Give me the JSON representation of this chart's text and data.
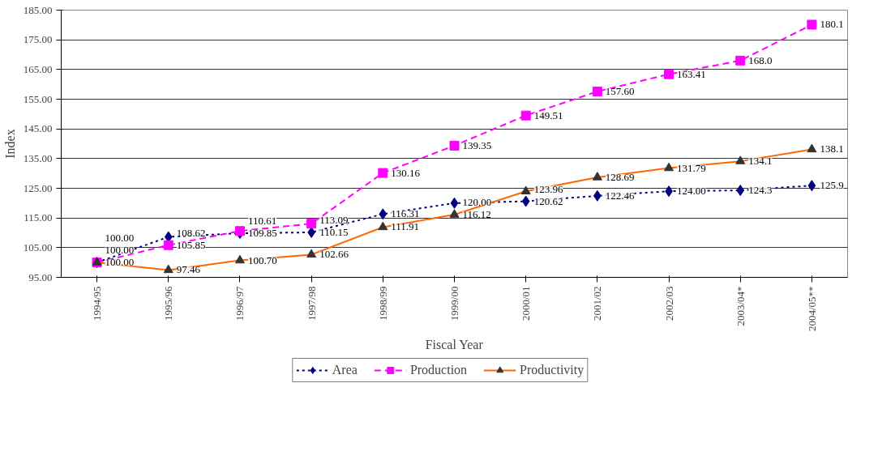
{
  "chart_data": {
    "type": "line",
    "xlabel": "Fiscal Year",
    "ylabel": "Index",
    "categories": [
      "1994/95",
      "1995/96",
      "1996/97",
      "1997/98",
      "1998/99",
      "1999/00",
      "2000/01",
      "2001/02",
      "2002/03",
      "2003/04*",
      "2004/05**"
    ],
    "series": [
      {
        "name": "Area",
        "color": "#000080",
        "marker": "diamond",
        "line_style": "dotted",
        "values": [
          100.0,
          108.62,
          109.85,
          110.15,
          116.31,
          120.0,
          120.62,
          122.46,
          124.0,
          124.3,
          125.9
        ],
        "value_labels": [
          "100.00",
          "108.62",
          "109.85",
          "110.15",
          "116.31",
          "120.00",
          "120.62",
          "122.46",
          "124.00",
          "124.3",
          "125.9"
        ]
      },
      {
        "name": "Production",
        "color": "#ff00ff",
        "marker": "square",
        "line_style": "dashed",
        "values": [
          100.0,
          105.85,
          110.61,
          113.09,
          130.16,
          139.35,
          149.51,
          157.6,
          163.41,
          168.0,
          180.1
        ],
        "value_labels": [
          "100.00",
          "105.85",
          "110.61",
          "113.09",
          "130.16",
          "139.35",
          "149.51",
          "157.60",
          "163.41",
          "168.0",
          "180.1"
        ]
      },
      {
        "name": "Productivity",
        "color": "#ff6600",
        "marker": "triangle",
        "line_style": "solid",
        "values": [
          100.0,
          97.46,
          100.7,
          102.66,
          111.91,
          116.12,
          123.96,
          128.69,
          131.79,
          134.1,
          138.1
        ],
        "value_labels": [
          "100.00",
          "97.46",
          "100.70",
          "102.66",
          "111.91",
          "116.12",
          "123.96",
          "128.69",
          "131.79",
          "134.1",
          "138.1"
        ]
      }
    ],
    "ylim": [
      95,
      185
    ],
    "yticks": [
      {
        "value": 95,
        "label": "95.00"
      },
      {
        "value": 105,
        "label": "105.00"
      },
      {
        "value": 115,
        "label": "115.00"
      },
      {
        "value": 125,
        "label": "125.00"
      },
      {
        "value": 135,
        "label": "135.00"
      },
      {
        "value": 145,
        "label": "145.00"
      },
      {
        "value": 155,
        "label": "155.00"
      },
      {
        "value": 165,
        "label": "165.00"
      },
      {
        "value": 175,
        "label": "175.00"
      },
      {
        "value": 185,
        "label": "185.00"
      }
    ],
    "grid": "y",
    "legend": "bottom"
  }
}
